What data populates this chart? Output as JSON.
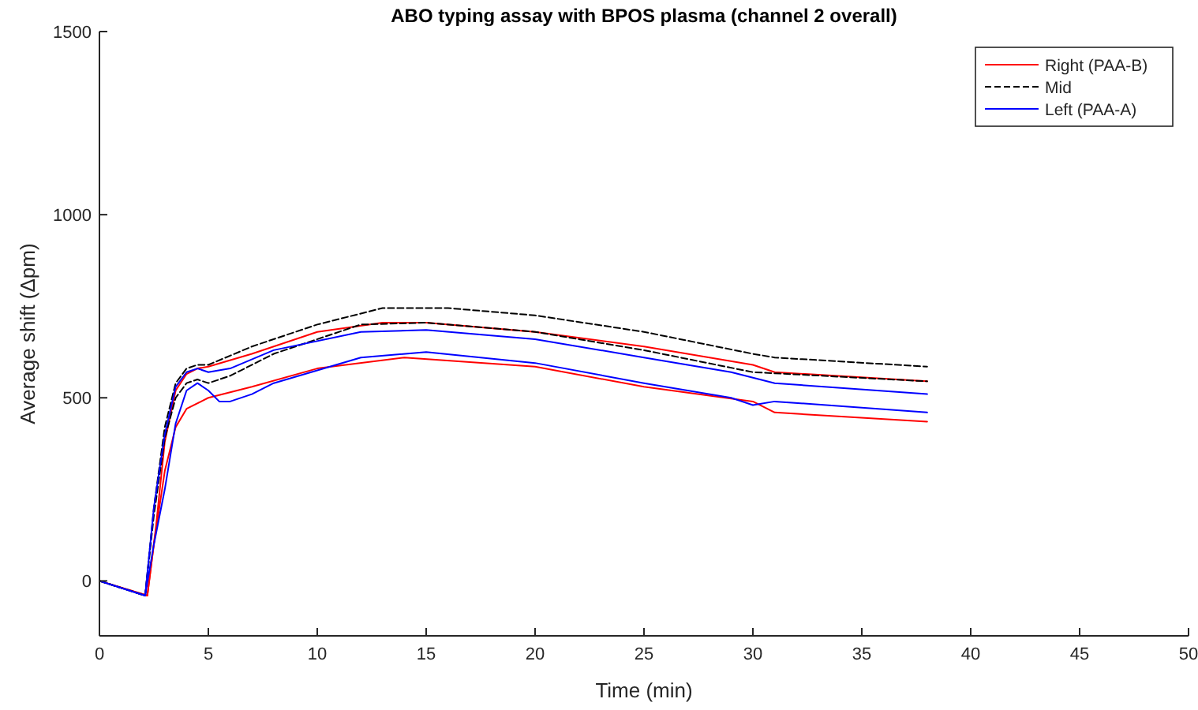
{
  "chart_data": {
    "type": "line",
    "title": "ABO typing assay with BPOS plasma (channel 2 overall)",
    "xlabel": "Time (min)",
    "ylabel": "Average shift (Δpm)",
    "xlim": [
      0,
      50
    ],
    "ylim": [
      -150,
      1500
    ],
    "xticks": [
      0,
      5,
      10,
      15,
      20,
      25,
      30,
      35,
      40,
      45,
      50
    ],
    "yticks": [
      0,
      500,
      1000,
      1500
    ],
    "grid": false,
    "legend": "top right",
    "marker": "none",
    "series": [
      {
        "name": "Right (PAA-B)",
        "color": "#ff0000",
        "line_style": "solid",
        "x": [
          0,
          2.2,
          2.6,
          3,
          3.5,
          4,
          4.5,
          5,
          7,
          10,
          13,
          15,
          20,
          25,
          30,
          31,
          38
        ],
        "values": [
          0,
          -40,
          150,
          380,
          520,
          565,
          580,
          585,
          620,
          680,
          705,
          705,
          680,
          640,
          590,
          570,
          545
        ]
      },
      {
        "color": "#ff0000",
        "line_style": "solid",
        "x": [
          0,
          2.2,
          2.5,
          3,
          3.5,
          4,
          5,
          7,
          10,
          14,
          20,
          25,
          30,
          31,
          38
        ],
        "values": [
          0,
          -40,
          100,
          300,
          420,
          470,
          500,
          530,
          580,
          610,
          585,
          530,
          490,
          460,
          435
        ]
      },
      {
        "name": "Mid",
        "color": "#000000",
        "line_style": "dashed",
        "x": [
          0,
          2.1,
          2.5,
          3,
          3.5,
          4,
          4.5,
          5,
          7,
          10,
          13,
          16,
          20,
          25,
          30,
          31,
          38
        ],
        "values": [
          0,
          -40,
          200,
          420,
          540,
          580,
          590,
          590,
          640,
          700,
          745,
          745,
          725,
          680,
          620,
          610,
          585
        ]
      },
      {
        "color": "#000000",
        "line_style": "dashed",
        "x": [
          0,
          2.1,
          2.5,
          3,
          3.5,
          4,
          4.5,
          5,
          6,
          8,
          12,
          15,
          20,
          25,
          30,
          38
        ],
        "values": [
          0,
          -40,
          180,
          390,
          500,
          540,
          550,
          540,
          560,
          620,
          700,
          705,
          680,
          630,
          570,
          545
        ]
      },
      {
        "name": "Left (PAA-A)",
        "color": "#0000ff",
        "line_style": "solid",
        "x": [
          0,
          2.1,
          2.5,
          3,
          3.5,
          4,
          4.5,
          5,
          6,
          8,
          12,
          15,
          20,
          25,
          29,
          31,
          38
        ],
        "values": [
          0,
          -40,
          200,
          400,
          530,
          570,
          580,
          570,
          580,
          630,
          680,
          685,
          660,
          610,
          570,
          540,
          510
        ]
      },
      {
        "color": "#0000ff",
        "line_style": "solid",
        "x": [
          0,
          2.1,
          2.5,
          3,
          3.5,
          4,
          4.5,
          5,
          5.5,
          6,
          7,
          8,
          12,
          15,
          20,
          25,
          29,
          30,
          31,
          38
        ],
        "values": [
          0,
          -40,
          100,
          250,
          430,
          520,
          540,
          520,
          490,
          490,
          510,
          540,
          610,
          625,
          595,
          540,
          500,
          480,
          490,
          460
        ]
      }
    ]
  }
}
